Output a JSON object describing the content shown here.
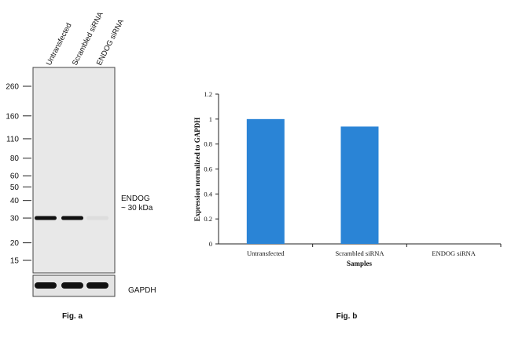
{
  "fig_a": {
    "lanes": [
      "Untransfected",
      "Scrambled siRNA",
      "ENDOG siRNA"
    ],
    "markers": [
      "260",
      "160",
      "110",
      "80",
      "60",
      "50",
      "40",
      "30",
      "20",
      "15"
    ],
    "marker_kda": [
      260,
      160,
      110,
      80,
      60,
      50,
      40,
      30,
      20,
      15
    ],
    "band_label_line1": "ENDOG",
    "band_label_line2": "~ 30 kDa",
    "loading_label": "GAPDH",
    "caption": "Fig. a",
    "band_intensity": [
      1.0,
      1.0,
      0.05
    ],
    "loading_intensity": [
      1.0,
      1.0,
      1.0
    ],
    "colors": {
      "blot_bg": "#e8e8e8",
      "band": "#111111"
    }
  },
  "chart_data": {
    "type": "bar",
    "categories": [
      "Untransfected",
      "Scrambled siRNA",
      "ENDOG siRNA"
    ],
    "values": [
      1.0,
      0.94,
      0.0
    ],
    "xlabel": "Samples",
    "ylabel": "Expression normalized to GAPDH",
    "ylim": [
      0,
      1.2
    ],
    "yticks": [
      0,
      0.2,
      0.4,
      0.6,
      0.8,
      1,
      1.2
    ],
    "ytick_labels": [
      "0",
      "0.2",
      "0.4",
      "0.6",
      "0.8",
      "1",
      "1.2"
    ],
    "grid": false,
    "legend": "none",
    "bar_color": "#2a84d6",
    "caption": "Fig. b"
  }
}
